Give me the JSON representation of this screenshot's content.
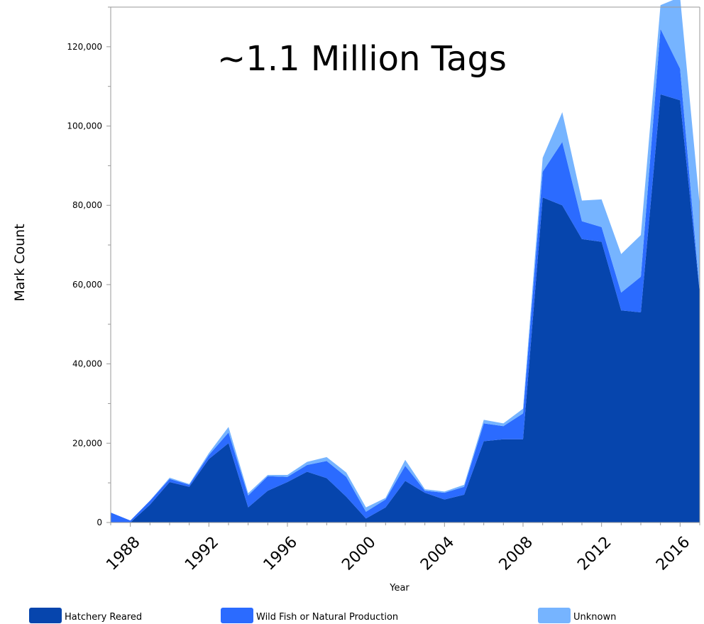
{
  "chart_data": {
    "type": "area",
    "stacked": true,
    "annotation": "~1.1 Million Tags",
    "xlabel": "Year",
    "ylabel": "Mark Count",
    "xlim": [
      1987,
      2017
    ],
    "ylim": [
      0,
      130000
    ],
    "x_ticks": [
      "1988",
      "1992",
      "1996",
      "2000",
      "2004",
      "2008",
      "2012",
      "2016"
    ],
    "y_ticks": [
      "0",
      "20,000",
      "40,000",
      "60,000",
      "80,000",
      "100,000",
      "120,000"
    ],
    "grid": false,
    "legend_position": "bottom",
    "x": [
      1987,
      1988,
      1989,
      1990,
      1991,
      1992,
      1993,
      1994,
      1995,
      1996,
      1997,
      1998,
      1999,
      2000,
      2001,
      2002,
      2003,
      2004,
      2005,
      2006,
      2007,
      2008,
      2009,
      2010,
      2011,
      2012,
      2013,
      2014,
      2015,
      2016,
      2017
    ],
    "series": [
      {
        "name": "Hatchery Reared",
        "color": "#0645AD",
        "values": [
          0,
          0,
          4500,
          10200,
          9000,
          16000,
          20000,
          3800,
          8000,
          10200,
          12800,
          11200,
          6500,
          1000,
          3800,
          10500,
          7500,
          5800,
          7000,
          20500,
          21000,
          21000,
          82000,
          80000,
          71500,
          70800,
          53500,
          53000,
          108000,
          106500,
          58000
        ]
      },
      {
        "name": "Wild Fish or Natural Production",
        "color": "#2B6BFF",
        "values": [
          2500,
          500,
          1000,
          800,
          500,
          1000,
          2700,
          3000,
          3700,
          1300,
          1700,
          4300,
          5000,
          1700,
          2000,
          3800,
          500,
          1700,
          2000,
          4500,
          3300,
          6500,
          6500,
          16000,
          4500,
          3700,
          4500,
          9000,
          16500,
          8000,
          0
        ]
      },
      {
        "name": "Unknown",
        "color": "#76B4FF",
        "values": [
          0,
          0,
          0,
          300,
          200,
          500,
          1400,
          600,
          300,
          500,
          800,
          1000,
          1100,
          1100,
          400,
          1500,
          400,
          300,
          500,
          900,
          700,
          1200,
          3500,
          7500,
          5200,
          7000,
          9700,
          10500,
          6000,
          18000,
          22000
        ]
      }
    ]
  }
}
